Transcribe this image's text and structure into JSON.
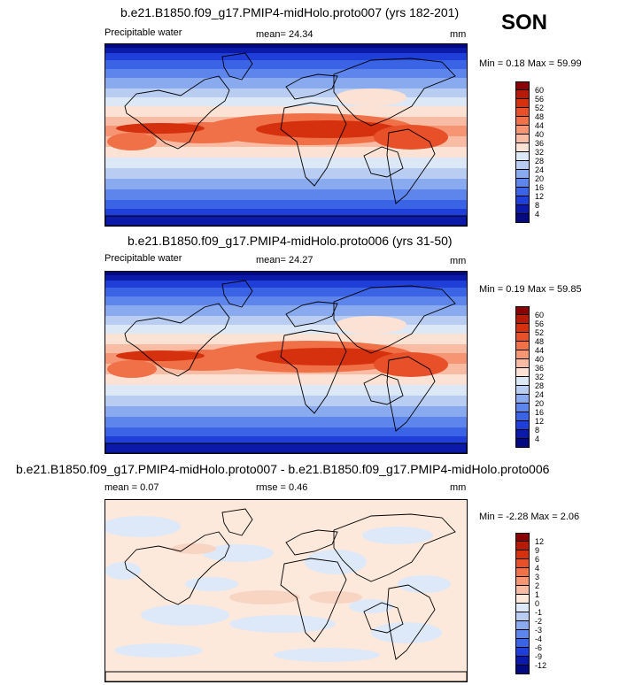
{
  "season": "SON",
  "panels": [
    {
      "title": "b.e21.B1850.f09_g17.PMIP4-midHolo.proto007 (yrs 182-201)",
      "left_label": "Precipitable water",
      "stat_label": "mean=",
      "stat_value": "24.34",
      "extra_label": "",
      "extra_value": "",
      "units": "mm",
      "minmax": "Min =  0.18 Max =  59.99"
    },
    {
      "title": "b.e21.B1850.f09_g17.PMIP4-midHolo.proto006 (yrs 31-50)",
      "left_label": "Precipitable water",
      "stat_label": "mean=",
      "stat_value": "24.27",
      "extra_label": "",
      "extra_value": "",
      "units": "mm",
      "minmax": "Min =  0.19 Max =  59.85"
    },
    {
      "title": "b.e21.B1850.f09_g17.PMIP4-midHolo.proto007 - b.e21.B1850.f09_g17.PMIP4-midHolo.proto006",
      "left_label": "mean =",
      "stat_label": "",
      "stat_value": "0.07",
      "extra_label": "rmse =",
      "extra_value": "0.46",
      "units": "mm",
      "minmax": "Min = -2.28 Max =  2.06"
    }
  ],
  "chart_data": [
    {
      "type": "heatmap",
      "title": "b.e21.B1850.f09_g17.PMIP4-midHolo.proto007 (yrs 182-201)",
      "variable": "Precipitable water",
      "units": "mm",
      "mean": 24.34,
      "min": 0.18,
      "max": 59.99,
      "colorbar_levels": [
        "60",
        "56",
        "52",
        "48",
        "44",
        "40",
        "36",
        "32",
        "28",
        "24",
        "20",
        "16",
        "12",
        "8",
        "4"
      ],
      "colorbar_colors": [
        "#8b0000",
        "#b81a0a",
        "#d6310f",
        "#e8502a",
        "#f07048",
        "#f59573",
        "#f8bca4",
        "#fbe2d4",
        "#dce8f6",
        "#b9cdf2",
        "#8aaaf0",
        "#5d85ec",
        "#3a63e6",
        "#1f3fd8",
        "#0b1aa8",
        "#030a80"
      ]
    },
    {
      "type": "heatmap",
      "title": "b.e21.B1850.f09_g17.PMIP4-midHolo.proto006 (yrs 31-50)",
      "variable": "Precipitable water",
      "units": "mm",
      "mean": 24.27,
      "min": 0.19,
      "max": 59.85,
      "colorbar_levels": [
        "60",
        "56",
        "52",
        "48",
        "44",
        "40",
        "36",
        "32",
        "28",
        "24",
        "20",
        "16",
        "12",
        "8",
        "4"
      ],
      "colorbar_colors": [
        "#8b0000",
        "#b81a0a",
        "#d6310f",
        "#e8502a",
        "#f07048",
        "#f59573",
        "#f8bca4",
        "#fbe2d4",
        "#dce8f6",
        "#b9cdf2",
        "#8aaaf0",
        "#5d85ec",
        "#3a63e6",
        "#1f3fd8",
        "#0b1aa8",
        "#030a80"
      ]
    },
    {
      "type": "heatmap",
      "title": "b.e21.B1850.f09_g17.PMIP4-midHolo.proto007 - b.e21.B1850.f09_g17.PMIP4-midHolo.proto006",
      "units": "mm",
      "mean": 0.07,
      "rmse": 0.46,
      "min": -2.28,
      "max": 2.06,
      "colorbar_levels": [
        "12",
        "9",
        "6",
        "4",
        "3",
        "2",
        "1",
        "0",
        "-1",
        "-2",
        "-3",
        "-4",
        "-6",
        "-9",
        "-12"
      ],
      "colorbar_colors": [
        "#8b0000",
        "#b81a0a",
        "#d6310f",
        "#e8502a",
        "#f07048",
        "#f59573",
        "#f8bca4",
        "#fde8dc",
        "#dde9f8",
        "#b9cdf2",
        "#8aaaf0",
        "#5d85ec",
        "#3a63e6",
        "#1f3fd8",
        "#0b1aa8",
        "#030a80"
      ]
    }
  ]
}
